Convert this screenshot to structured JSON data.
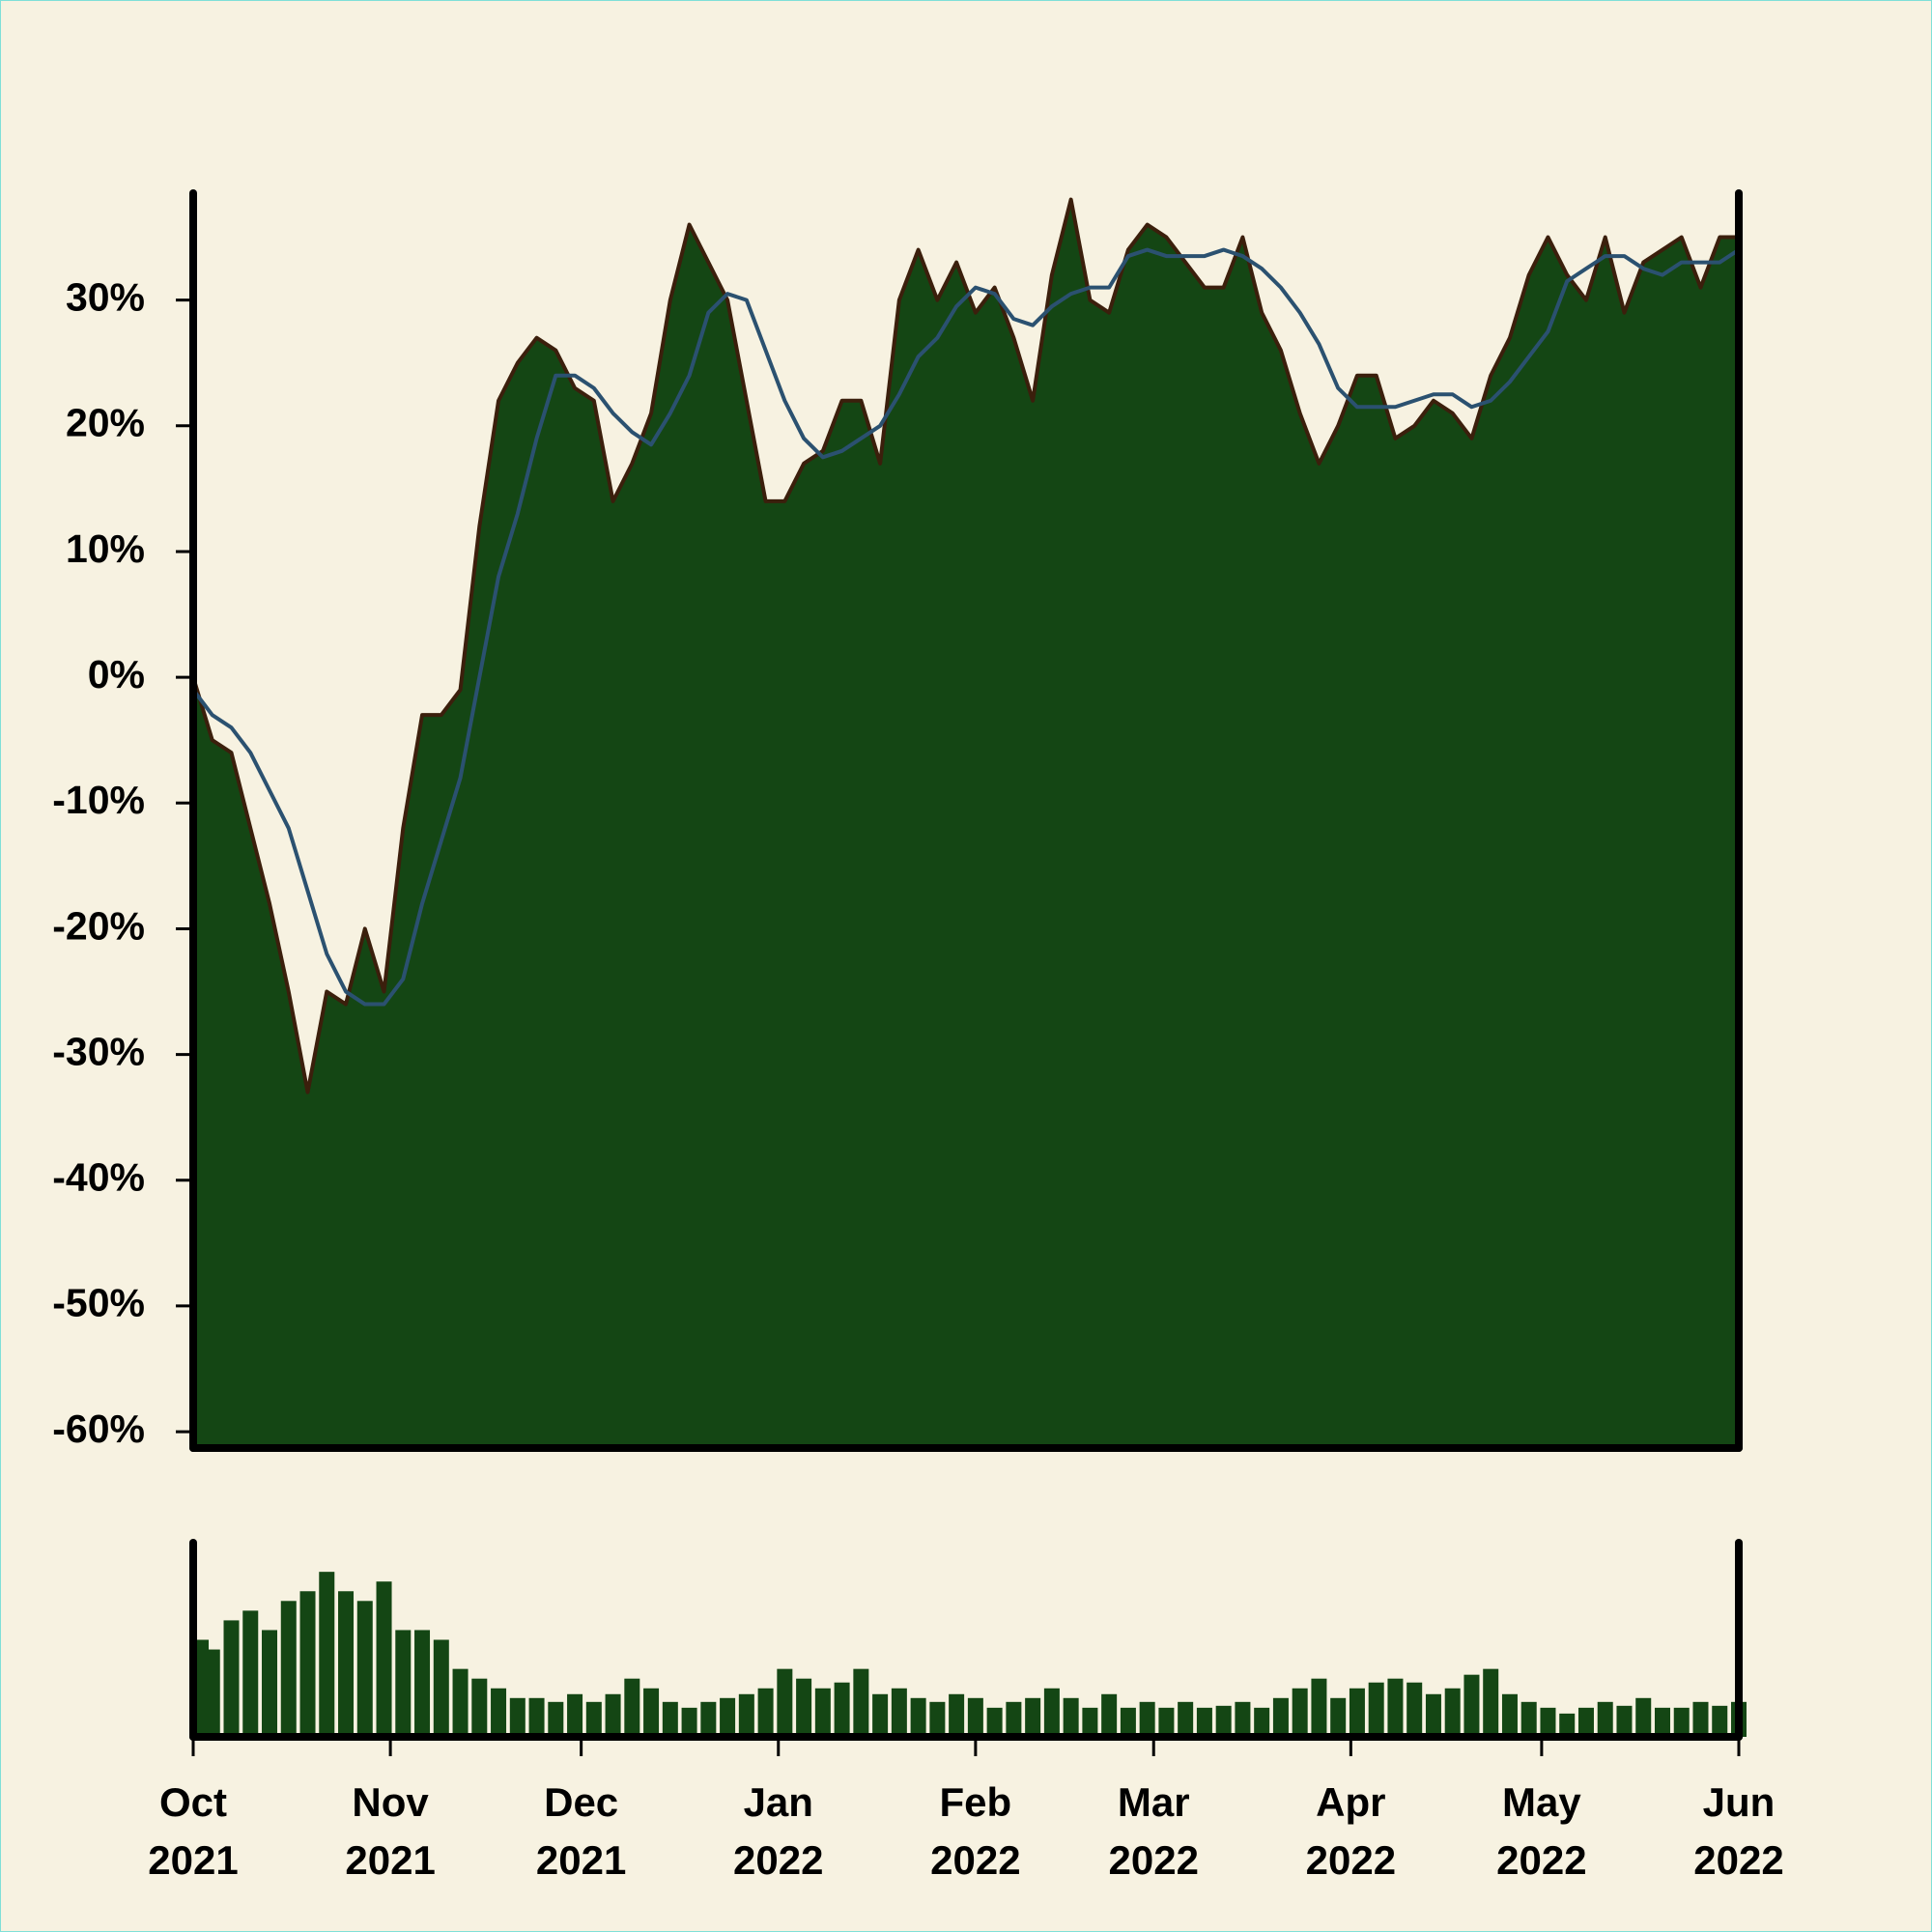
{
  "chart_data": {
    "type": "area",
    "x": [
      0,
      3,
      6,
      9,
      12,
      15,
      18,
      21,
      24,
      27,
      30,
      33,
      36,
      39,
      42,
      45,
      48,
      51,
      54,
      57,
      60,
      63,
      66,
      69,
      72,
      75,
      78,
      81,
      84,
      87,
      90,
      93,
      96,
      99,
      102,
      105,
      108,
      111,
      114,
      117,
      120,
      123,
      126,
      129,
      132,
      135,
      138,
      141,
      144,
      147,
      150,
      153,
      156,
      159,
      162,
      165,
      168,
      171,
      174,
      177,
      180,
      183,
      186,
      189,
      192,
      195,
      198,
      201,
      204,
      207,
      210,
      213,
      216,
      219,
      222,
      225,
      228,
      231,
      234,
      237,
      240,
      243
    ],
    "values": [
      0,
      -5,
      -6,
      -12,
      -18,
      -25,
      -33,
      -25,
      -26,
      -20,
      -25,
      -12,
      -3,
      -3,
      -1,
      12,
      22,
      25,
      27,
      26,
      23,
      22,
      14,
      17,
      21,
      30,
      36,
      33,
      30,
      22,
      14,
      14,
      17,
      18,
      22,
      22,
      17,
      30,
      34,
      30,
      33,
      29,
      31,
      27,
      22,
      32,
      38,
      30,
      29,
      34,
      36,
      35,
      33,
      31,
      31,
      35,
      29,
      26,
      21,
      17,
      20,
      24,
      24,
      19,
      20,
      22,
      21,
      19,
      24,
      27,
      32,
      35,
      32,
      30,
      35,
      29,
      33,
      34,
      35,
      31,
      35,
      35
    ],
    "moving_average": [
      -1,
      -3,
      -4,
      -6,
      -9,
      -12,
      -17,
      -22,
      -25,
      -26,
      -26,
      -24,
      -18,
      -13,
      -8,
      0,
      8,
      13,
      19,
      24,
      24,
      23,
      21,
      19.5,
      18.5,
      21,
      24,
      29,
      30.5,
      30,
      26,
      22,
      19,
      17.5,
      18,
      19,
      20,
      22.5,
      25.5,
      27,
      29.5,
      31,
      30.5,
      28.5,
      28,
      29.5,
      30.5,
      31,
      31,
      33.5,
      34,
      33.5,
      33.5,
      33.5,
      34,
      33.5,
      32.5,
      31,
      29,
      26.5,
      23,
      21.5,
      21.5,
      21.5,
      22,
      22.5,
      22.5,
      21.5,
      22,
      23.5,
      25.5,
      27.5,
      31.5,
      32.5,
      33.5,
      33.5,
      32.5,
      32,
      33,
      33,
      33,
      34
    ],
    "volume": [
      50,
      45,
      60,
      65,
      55,
      70,
      75,
      85,
      75,
      70,
      80,
      55,
      55,
      50,
      35,
      30,
      25,
      20,
      20,
      18,
      22,
      18,
      22,
      30,
      25,
      18,
      15,
      18,
      20,
      22,
      25,
      35,
      30,
      25,
      28,
      35,
      22,
      25,
      20,
      18,
      22,
      20,
      15,
      18,
      20,
      25,
      20,
      15,
      22,
      15,
      18,
      15,
      18,
      15,
      16,
      18,
      15,
      20,
      25,
      30,
      20,
      25,
      28,
      30,
      28,
      22,
      25,
      32,
      35,
      22,
      18,
      15,
      12,
      15,
      18,
      16,
      20,
      15,
      15,
      18,
      16,
      18
    ],
    "color": "#144614",
    "edge_color": "#3b1f0c",
    "moving_average_color": "#2b5170",
    "xlim": [
      0,
      243
    ],
    "xticks": [
      {
        "value": 0,
        "label": "Oct 2021"
      },
      {
        "value": 31,
        "label": "Nov 2021"
      },
      {
        "value": 61,
        "label": "Dec 2021"
      },
      {
        "value": 92,
        "label": "Jan 2022"
      },
      {
        "value": 123,
        "label": "Feb 2022"
      },
      {
        "value": 151,
        "label": "Mar 2022"
      },
      {
        "value": 182,
        "label": "Apr 2022"
      },
      {
        "value": 212,
        "label": "May 2022"
      },
      {
        "value": 243,
        "label": "Jun 2022"
      }
    ],
    "ylim": [
      -61.3,
      38.5
    ],
    "yticks": [
      {
        "value": -60,
        "label": "-60%"
      },
      {
        "value": -50,
        "label": "-50%"
      },
      {
        "value": -40,
        "label": "-40%"
      },
      {
        "value": -30,
        "label": "-30%"
      },
      {
        "value": -20,
        "label": "-20%"
      },
      {
        "value": -10,
        "label": "-10%"
      },
      {
        "value": 0,
        "label": "0%"
      },
      {
        "value": 10,
        "label": "10%"
      },
      {
        "value": 20,
        "label": "20%"
      },
      {
        "value": 30,
        "label": "30%"
      }
    ],
    "volume_ylim": [
      0,
      100
    ]
  }
}
